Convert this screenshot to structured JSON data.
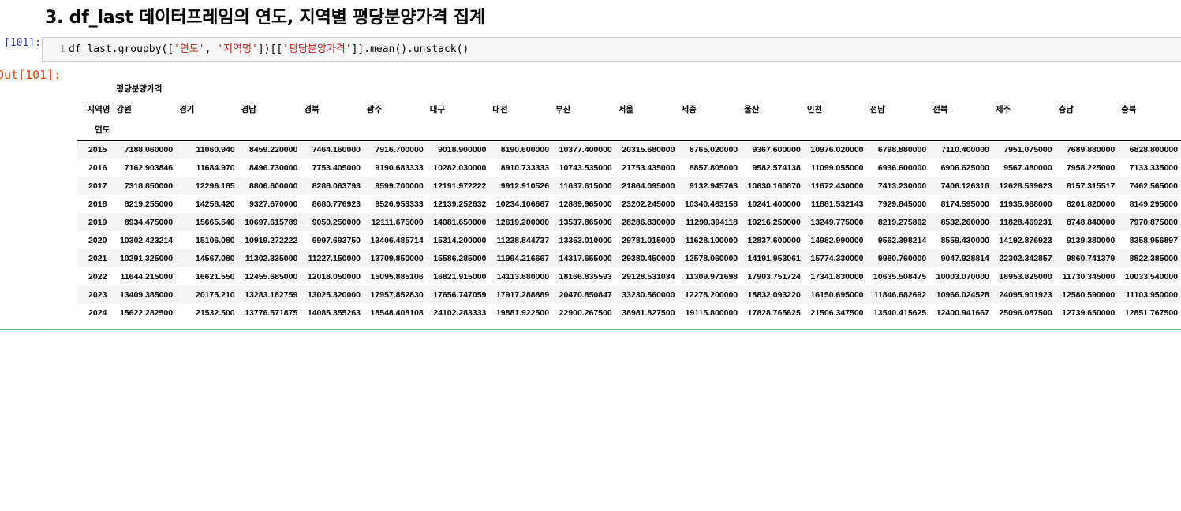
{
  "heading": "3. df_last 데이터프레임의 연도, 지역별 평당분양가격 집계",
  "input_prompt": "In [101]:",
  "output_prompt": "Out[101]:",
  "code": {
    "line_number": "1",
    "parts": [
      "df_last.groupby([",
      "'연도'",
      ", ",
      "'지역명'",
      "])[[",
      "'평당분양가격'",
      "]].mean().unstack()"
    ]
  },
  "dataframe": {
    "top_level": "평당분양가격",
    "columns_name": "지역명",
    "index_name": "연도",
    "columns": [
      "강원",
      "경기",
      "경남",
      "경북",
      "광주",
      "대구",
      "대전",
      "부산",
      "서울",
      "세종",
      "울산",
      "인천",
      "전남",
      "전북",
      "제주",
      "충남",
      "충북"
    ],
    "rows": [
      {
        "index": "2015",
        "values": [
          "7188.060000",
          "11060.940",
          "8459.220000",
          "7464.160000",
          "7916.700000",
          "9018.900000",
          "8190.600000",
          "10377.400000",
          "20315.680000",
          "8765.020000",
          "9367.600000",
          "10976.020000",
          "6798.880000",
          "7110.400000",
          "7951.075000",
          "7689.880000",
          "6828.800000"
        ]
      },
      {
        "index": "2016",
        "values": [
          "7162.903846",
          "11684.970",
          "8496.730000",
          "7753.405000",
          "9190.683333",
          "10282.030000",
          "8910.733333",
          "10743.535000",
          "21753.435000",
          "8857.805000",
          "9582.574138",
          "11099.055000",
          "6936.600000",
          "6906.625000",
          "9567.480000",
          "7958.225000",
          "7133.335000"
        ]
      },
      {
        "index": "2017",
        "values": [
          "7318.850000",
          "12296.185",
          "8806.600000",
          "8288.063793",
          "9599.700000",
          "12191.972222",
          "9912.910526",
          "11637.615000",
          "21864.095000",
          "9132.945763",
          "10630.160870",
          "11672.430000",
          "7413.230000",
          "7406.126316",
          "12628.539623",
          "8157.315517",
          "7462.565000"
        ]
      },
      {
        "index": "2018",
        "values": [
          "8219.255000",
          "14258.420",
          "9327.670000",
          "8680.776923",
          "9526.953333",
          "12139.252632",
          "10234.106667",
          "12889.965000",
          "23202.245000",
          "10340.463158",
          "10241.400000",
          "11881.532143",
          "7929.845000",
          "8174.595000",
          "11935.968000",
          "8201.820000",
          "8149.295000"
        ]
      },
      {
        "index": "2019",
        "values": [
          "8934.475000",
          "15665.540",
          "10697.615789",
          "9050.250000",
          "12111.675000",
          "14081.650000",
          "12619.200000",
          "13537.865000",
          "28286.830000",
          "11299.394118",
          "10216.250000",
          "13249.775000",
          "8219.275862",
          "8532.260000",
          "11828.469231",
          "8748.840000",
          "7970.875000"
        ]
      },
      {
        "index": "2020",
        "values": [
          "10302.423214",
          "15106.080",
          "10919.272222",
          "9997.693750",
          "13406.485714",
          "15314.200000",
          "11238.844737",
          "13353.010000",
          "29781.015000",
          "11628.100000",
          "12837.600000",
          "14982.990000",
          "9562.398214",
          "8559.430000",
          "14192.876923",
          "9139.380000",
          "8358.956897"
        ]
      },
      {
        "index": "2021",
        "values": [
          "10291.325000",
          "14567.080",
          "11302.335000",
          "11227.150000",
          "13709.850000",
          "15586.285000",
          "11994.216667",
          "14317.655000",
          "29380.450000",
          "12578.060000",
          "14191.953061",
          "15774.330000",
          "9980.760000",
          "9047.928814",
          "22302.342857",
          "9860.741379",
          "8822.385000"
        ]
      },
      {
        "index": "2022",
        "values": [
          "11644.215000",
          "16621.550",
          "12455.685000",
          "12018.050000",
          "15095.885106",
          "16821.915000",
          "14113.880000",
          "18166.835593",
          "29128.531034",
          "11309.971698",
          "17903.751724",
          "17341.830000",
          "10635.508475",
          "10003.070000",
          "18953.825000",
          "11730.345000",
          "10033.540000"
        ]
      },
      {
        "index": "2023",
        "values": [
          "13409.385000",
          "20175.210",
          "13283.182759",
          "13025.320000",
          "17957.852830",
          "17656.747059",
          "17917.288889",
          "20470.850847",
          "33230.560000",
          "12278.200000",
          "18832.093220",
          "16150.695000",
          "11846.682692",
          "10966.024528",
          "24095.901923",
          "12580.590000",
          "11103.950000"
        ]
      },
      {
        "index": "2024",
        "values": [
          "15622.282500",
          "21532.500",
          "13776.571875",
          "14085.355263",
          "18548.408108",
          "24102.283333",
          "19881.922500",
          "22900.267500",
          "38981.827500",
          "19115.800000",
          "17828.765625",
          "21506.347500",
          "13540.415625",
          "12400.941667",
          "25096.087500",
          "12739.650000",
          "12851.767500"
        ]
      }
    ]
  }
}
